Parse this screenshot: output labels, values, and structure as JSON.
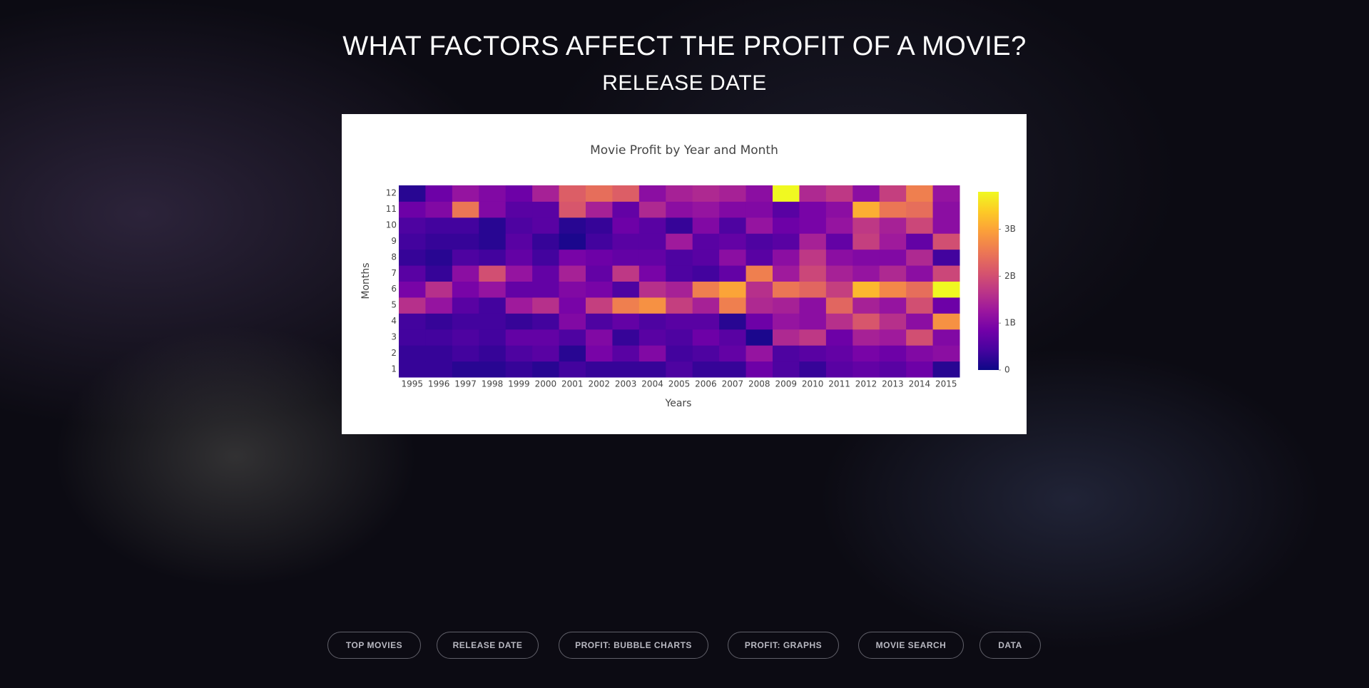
{
  "header": {
    "title": "WHAT FACTORS AFFECT THE PROFIT OF A MOVIE?",
    "subtitle": "RELEASE DATE"
  },
  "chart_data": {
    "type": "heatmap",
    "title": "Movie Profit by Year and Month",
    "x_label": "Years",
    "y_label": "Months",
    "x": [
      "1995",
      "1996",
      "1997",
      "1998",
      "1999",
      "2000",
      "2001",
      "2002",
      "2003",
      "2004",
      "2005",
      "2006",
      "2007",
      "2008",
      "2009",
      "2010",
      "2011",
      "2012",
      "2013",
      "2014",
      "2015"
    ],
    "y": [
      1,
      2,
      3,
      4,
      5,
      6,
      7,
      8,
      9,
      10,
      11,
      12
    ],
    "z": [
      [
        300000000.0,
        300000000.0,
        200000000.0,
        200000000.0,
        300000000.0,
        200000000.0,
        400000000.0,
        300000000.0,
        300000000.0,
        300000000.0,
        500000000.0,
        300000000.0,
        300000000.0,
        800000000.0,
        500000000.0,
        300000000.0,
        600000000.0,
        700000000.0,
        600000000.0,
        800000000.0,
        200000000.0
      ],
      [
        300000000.0,
        300000000.0,
        400000000.0,
        300000000.0,
        500000000.0,
        600000000.0,
        200000000.0,
        900000000.0,
        600000000.0,
        1000000000.0,
        400000000.0,
        500000000.0,
        700000000.0,
        1200000000.0,
        500000000.0,
        600000000.0,
        700000000.0,
        900000000.0,
        800000000.0,
        1000000000.0,
        1100000000.0
      ],
      [
        400000000.0,
        400000000.0,
        500000000.0,
        400000000.0,
        700000000.0,
        700000000.0,
        500000000.0,
        1000000000.0,
        300000000.0,
        600000000.0,
        500000000.0,
        800000000.0,
        600000000.0,
        100000000.0,
        1500000000.0,
        1700000000.0,
        800000000.0,
        1400000000.0,
        1300000000.0,
        2000000000.0,
        1000000000.0
      ],
      [
        400000000.0,
        300000000.0,
        400000000.0,
        400000000.0,
        300000000.0,
        400000000.0,
        1000000000.0,
        500000000.0,
        700000000.0,
        500000000.0,
        600000000.0,
        600000000.0,
        200000000.0,
        800000000.0,
        1200000000.0,
        1100000000.0,
        1600000000.0,
        2100000000.0,
        1600000000.0,
        1100000000.0,
        2800000000.0
      ],
      [
        1600000000.0,
        1200000000.0,
        600000000.0,
        400000000.0,
        1300000000.0,
        1600000000.0,
        900000000.0,
        1800000000.0,
        2600000000.0,
        2800000000.0,
        1800000000.0,
        1400000000.0,
        2600000000.0,
        1500000000.0,
        1400000000.0,
        1100000000.0,
        2300000000.0,
        1400000000.0,
        1200000000.0,
        2000000000.0,
        800000000.0
      ],
      [
        900000000.0,
        1600000000.0,
        900000000.0,
        1200000000.0,
        700000000.0,
        700000000.0,
        1000000000.0,
        900000000.0,
        500000000.0,
        1600000000.0,
        1400000000.0,
        2600000000.0,
        3000000000.0,
        1600000000.0,
        2500000000.0,
        2300000000.0,
        1800000000.0,
        3200000000.0,
        2700000000.0,
        2400000000.0,
        3800000000.0
      ],
      [
        600000000.0,
        300000000.0,
        1100000000.0,
        2000000000.0,
        1200000000.0,
        700000000.0,
        1400000000.0,
        700000000.0,
        1700000000.0,
        900000000.0,
        500000000.0,
        400000000.0,
        700000000.0,
        2600000000.0,
        1300000000.0,
        1900000000.0,
        1400000000.0,
        1200000000.0,
        1500000000.0,
        1100000000.0,
        1900000000.0
      ],
      [
        300000000.0,
        200000000.0,
        500000000.0,
        400000000.0,
        700000000.0,
        400000000.0,
        900000000.0,
        800000000.0,
        700000000.0,
        700000000.0,
        500000000.0,
        600000000.0,
        1100000000.0,
        600000000.0,
        1100000000.0,
        1700000000.0,
        1100000000.0,
        1000000000.0,
        1000000000.0,
        1500000000.0,
        400000000.0
      ],
      [
        400000000.0,
        300000000.0,
        300000000.0,
        200000000.0,
        600000000.0,
        300000000.0,
        100000000.0,
        400000000.0,
        600000000.0,
        600000000.0,
        1300000000.0,
        600000000.0,
        700000000.0,
        500000000.0,
        600000000.0,
        1400000000.0,
        700000000.0,
        1800000000.0,
        1300000000.0,
        700000000.0,
        2000000000.0
      ],
      [
        500000000.0,
        400000000.0,
        400000000.0,
        200000000.0,
        500000000.0,
        600000000.0,
        200000000.0,
        300000000.0,
        800000000.0,
        600000000.0,
        300000000.0,
        1000000000.0,
        500000000.0,
        1200000000.0,
        800000000.0,
        900000000.0,
        1200000000.0,
        1700000000.0,
        1400000000.0,
        1900000000.0,
        1100000000.0
      ],
      [
        800000000.0,
        1000000000.0,
        2500000000.0,
        1000000000.0,
        600000000.0,
        600000000.0,
        2100000000.0,
        1400000000.0,
        700000000.0,
        1500000000.0,
        1100000000.0,
        1200000000.0,
        1000000000.0,
        1000000000.0,
        600000000.0,
        900000000.0,
        1100000000.0,
        3100000000.0,
        2500000000.0,
        2400000000.0,
        1100000000.0
      ],
      [
        200000000.0,
        800000000.0,
        1200000000.0,
        1000000000.0,
        800000000.0,
        1400000000.0,
        2200000000.0,
        2400000000.0,
        2200000000.0,
        1100000000.0,
        1400000000.0,
        1500000000.0,
        1400000000.0,
        1100000000.0,
        3800000000.0,
        1500000000.0,
        1700000000.0,
        1100000000.0,
        1800000000.0,
        2600000000.0,
        1200000000.0
      ]
    ],
    "zlim": [
      0,
      3800000000.0
    ],
    "zticks": [
      0,
      {
        "value": 1000000000.0,
        "label": "1B"
      },
      {
        "value": 2000000000.0,
        "label": "2B"
      },
      {
        "value": 3000000000.0,
        "label": "3B"
      }
    ],
    "colorscale": [
      "#0d0887",
      "#46039f",
      "#7201a8",
      "#9c179e",
      "#bd3786",
      "#d8576b",
      "#ed7953",
      "#fb9f3a",
      "#fdca26",
      "#f0f921"
    ]
  },
  "nav": {
    "items": [
      "TOP MOVIES",
      "RELEASE DATE",
      "PROFIT: BUBBLE CHARTS",
      "PROFIT: GRAPHS",
      "MOVIE SEARCH",
      "DATA"
    ]
  }
}
